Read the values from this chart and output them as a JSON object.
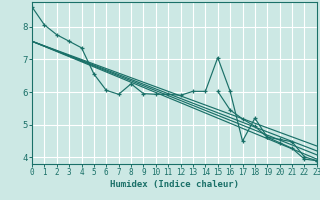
{
  "background_color": "#cce8e4",
  "grid_color": "#b0d8d4",
  "line_color": "#1a7068",
  "xlabel": "Humidex (Indice chaleur)",
  "xlim": [
    0,
    23
  ],
  "ylim": [
    3.8,
    8.75
  ],
  "yticks": [
    4,
    5,
    6,
    7,
    8
  ],
  "xticks": [
    0,
    1,
    2,
    3,
    4,
    5,
    6,
    7,
    8,
    9,
    10,
    11,
    12,
    13,
    14,
    15,
    16,
    17,
    18,
    19,
    20,
    21,
    22,
    23
  ],
  "line_main_x": [
    0,
    1,
    2,
    3,
    4,
    5,
    6,
    7,
    8,
    9,
    10,
    11,
    12,
    13,
    14,
    15,
    16,
    17,
    18,
    19,
    20,
    21,
    22,
    23
  ],
  "line_main_y": [
    8.6,
    8.05,
    7.75,
    7.55,
    7.35,
    6.55,
    6.05,
    5.93,
    6.25,
    5.95,
    5.93,
    5.93,
    5.9,
    6.02,
    6.02,
    7.05,
    6.02,
    4.5,
    5.2,
    4.62,
    4.55,
    4.48,
    4.02,
    3.9
  ],
  "diag_lines": [
    [
      0,
      7.55,
      23,
      4.2
    ],
    [
      0,
      7.55,
      23,
      4.08
    ],
    [
      0,
      7.55,
      23,
      3.95
    ],
    [
      0,
      7.55,
      23,
      4.35
    ]
  ],
  "line2_x": [
    15,
    16,
    17,
    18,
    19,
    20,
    21,
    22,
    23
  ],
  "line2_y": [
    6.02,
    5.45,
    5.18,
    4.95,
    4.62,
    4.45,
    4.28,
    3.95,
    3.9
  ]
}
